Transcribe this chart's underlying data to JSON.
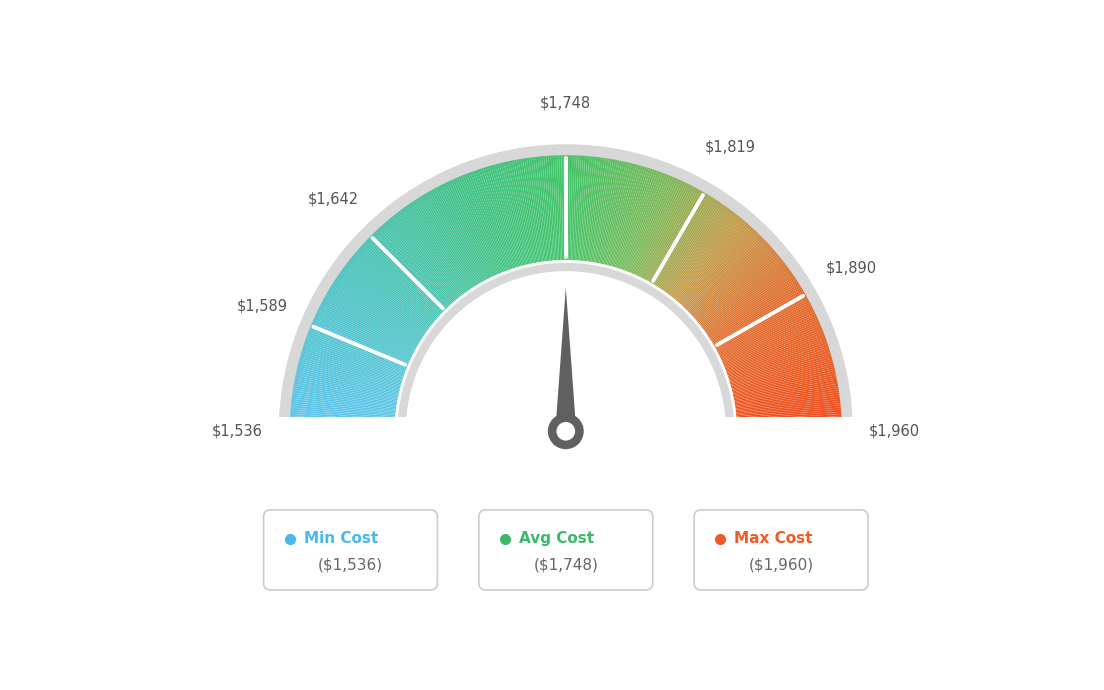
{
  "min_val": 1536,
  "max_val": 1960,
  "avg_val": 1748,
  "tick_labels": [
    "$1,536",
    "$1,589",
    "$1,642",
    "$1,748",
    "$1,819",
    "$1,890",
    "$1,960"
  ],
  "tick_values": [
    1536,
    1589,
    1642,
    1748,
    1819,
    1890,
    1960
  ],
  "legend_items": [
    {
      "label": "Min Cost",
      "value": "($1,536)",
      "color": "#4ab8ed"
    },
    {
      "label": "Avg Cost",
      "value": "($1,748)",
      "color": "#3db86b"
    },
    {
      "label": "Max Cost",
      "value": "($1,960)",
      "color": "#f05a28"
    }
  ],
  "color_stops": [
    [
      0.0,
      "#63c6f0"
    ],
    [
      0.2,
      "#4dc4c0"
    ],
    [
      0.38,
      "#42c285"
    ],
    [
      0.5,
      "#45c46a"
    ],
    [
      0.62,
      "#7aba5a"
    ],
    [
      0.72,
      "#c49b4a"
    ],
    [
      0.82,
      "#e07030"
    ],
    [
      1.0,
      "#f05020"
    ]
  ],
  "needle_color": "#606060",
  "background_color": "#ffffff",
  "R_outer": 1.0,
  "R_inner": 0.62,
  "xlim": [
    -1.55,
    1.55
  ],
  "ylim": [
    -0.65,
    1.25
  ]
}
